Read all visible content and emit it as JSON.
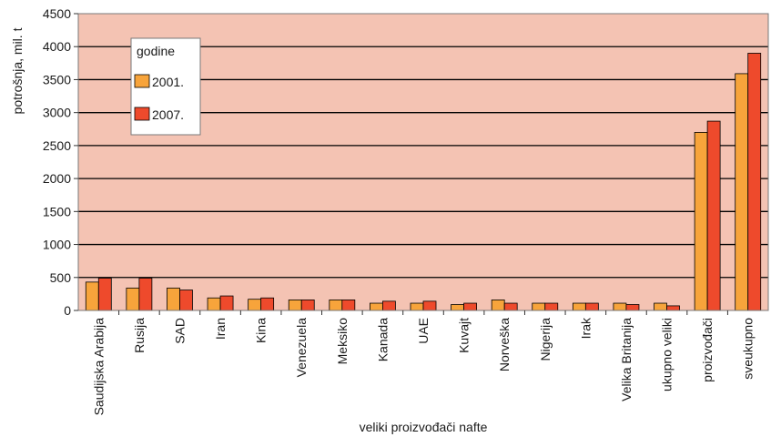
{
  "chart_data": {
    "type": "bar",
    "title": "",
    "xlabel": "veliki proizvođači nafte",
    "ylabel": "potrošnja, mil. t",
    "ylim": [
      0,
      4500
    ],
    "yticks": [
      0,
      500,
      1000,
      1500,
      2000,
      2500,
      3000,
      3500,
      4000,
      4500
    ],
    "grid": true,
    "legend": {
      "title": "godine",
      "placement": "top-left"
    },
    "categories": [
      "Saudijska Arabija",
      "Rusija",
      "SAD",
      "Iran",
      "Kina",
      "Venezuela",
      "Meksiko",
      "Kanada",
      "UAE",
      "Kuvajt",
      "Norveška",
      "Nigerija",
      "Irak",
      "Velika Britanija",
      "ukupno veliki",
      "proizvođači",
      "sveukupno"
    ],
    "series": [
      {
        "name": "2001.",
        "color": "#f7a43b",
        "values": [
          430,
          340,
          340,
          190,
          170,
          160,
          160,
          110,
          110,
          90,
          160,
          110,
          110,
          110,
          110,
          2700,
          3590
        ]
      },
      {
        "name": "2007.",
        "color": "#ee4a2c",
        "values": [
          490,
          490,
          310,
          220,
          190,
          160,
          160,
          140,
          140,
          110,
          110,
          110,
          110,
          90,
          70,
          2870,
          3900
        ]
      }
    ],
    "colors": {
      "plot_background": "#f4c3b3",
      "border": "#7a7a7a",
      "gridline": "#000000"
    }
  }
}
